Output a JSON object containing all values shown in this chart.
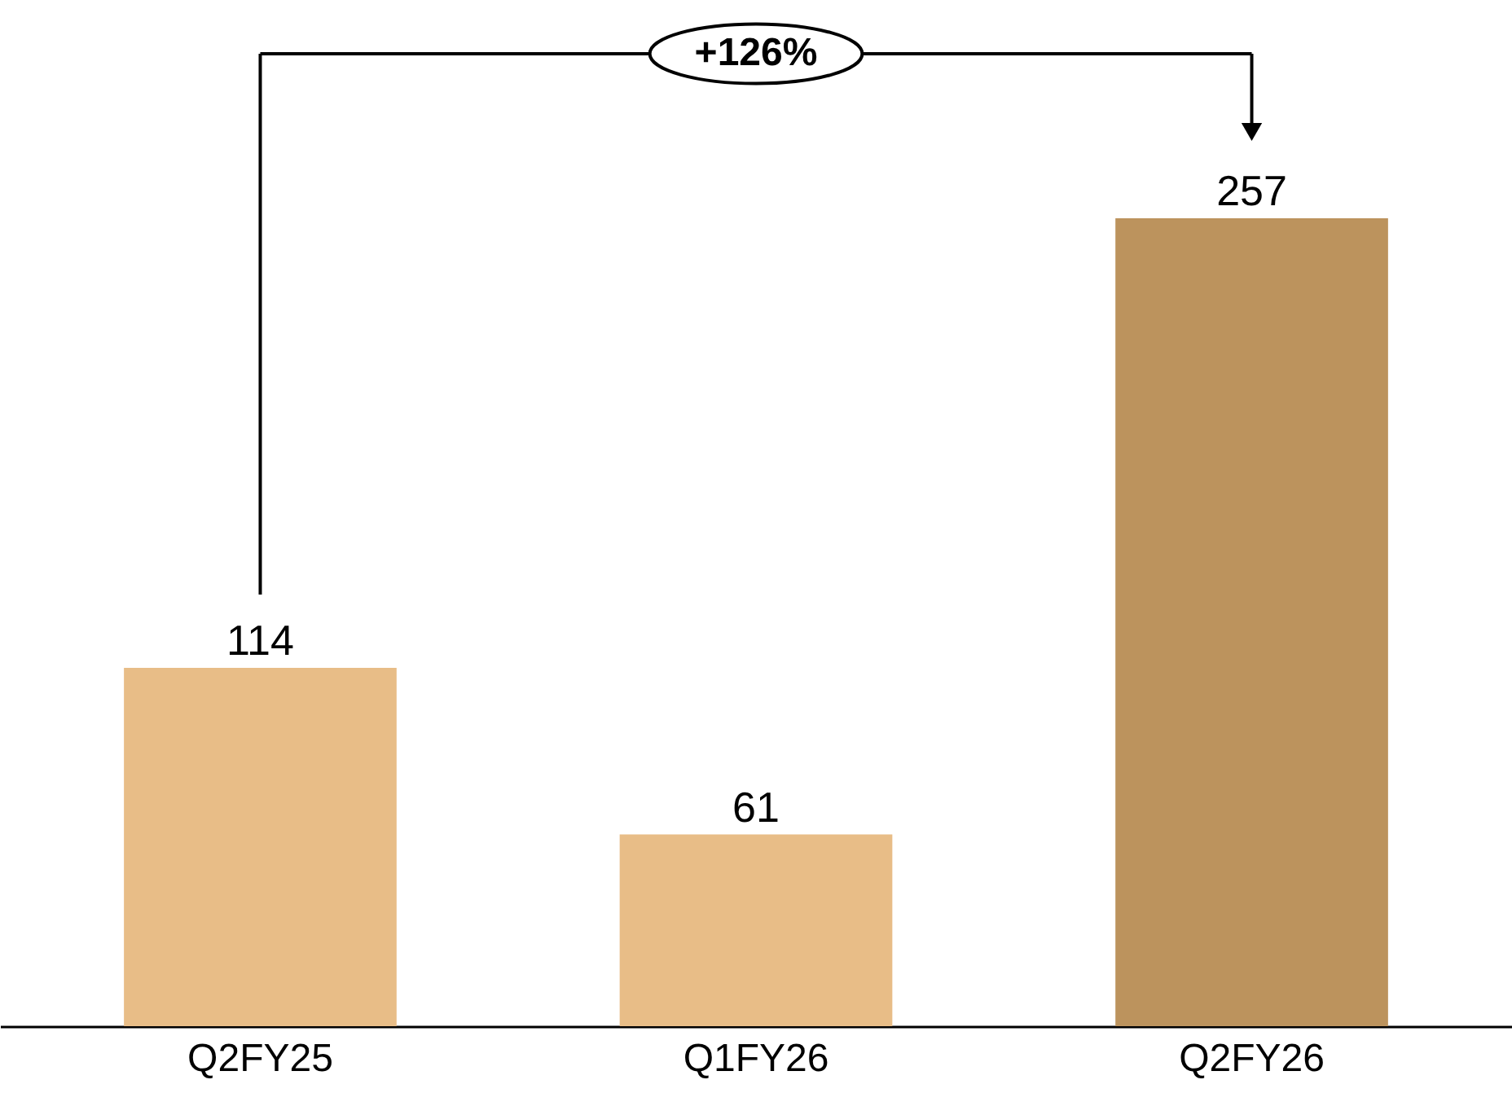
{
  "chart_data": {
    "type": "bar",
    "categories": [
      "Q2FY25",
      "Q1FY26",
      "Q2FY26"
    ],
    "values": [
      114,
      61,
      257
    ],
    "colors": [
      "#e8bd87",
      "#e8bd87",
      "#bc935d"
    ],
    "data_labels": true,
    "annotations": [
      "+126%"
    ]
  }
}
